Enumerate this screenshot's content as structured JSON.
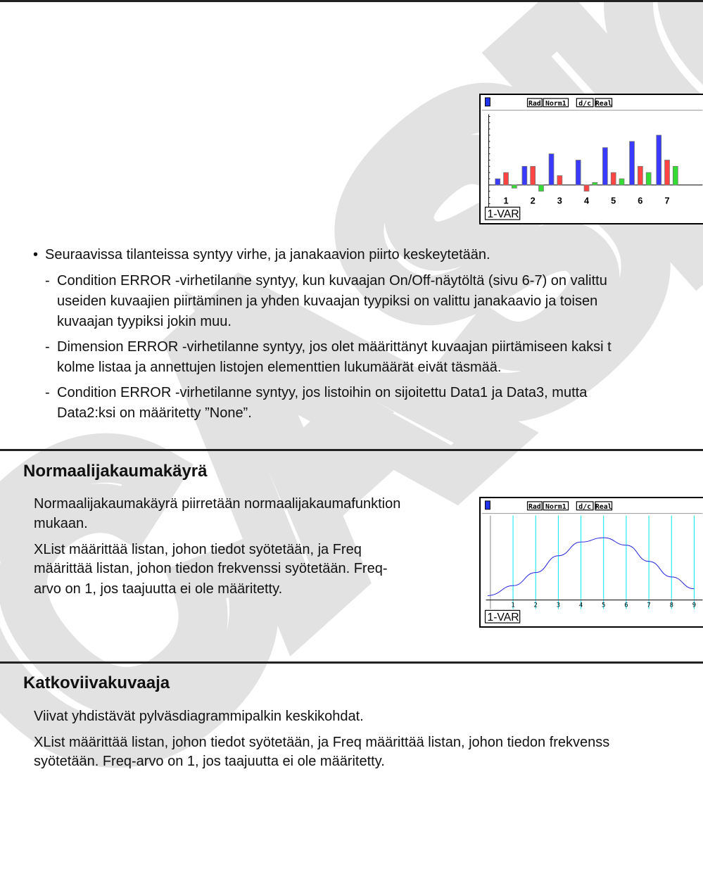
{
  "watermark": "CASIO",
  "bullet_section": {
    "bullet": "•",
    "intro": "Seuraavissa tilanteissa syntyy virhe, ja janakaavion piirto keskeytetään.",
    "items": [
      {
        "dash": "-",
        "lines": [
          "Condition ERROR -virhetilanne syntyy, kun kuvaajan On/Off-näytöltä (sivu 6-7) on valittu",
          "useiden kuvaajien piirtäminen ja yhden kuvaajan tyypiksi on valittu janakaavio ja toisen",
          "kuvaajan tyypiksi jokin muu."
        ]
      },
      {
        "dash": "-",
        "lines": [
          "Dimension ERROR -virhetilanne syntyy, jos olet määrittänyt kuvaajan piirtämiseen kaksi t",
          "kolme listaa ja annettujen listojen elementtien lukumäärät eivät täsmää."
        ]
      },
      {
        "dash": "-",
        "lines": [
          "Condition ERROR -virhetilanne syntyy, jos listoihin on sijoitettu Data1 ja Data3, mutta",
          "Data2:ksi on määritetty ”None”."
        ]
      }
    ]
  },
  "section_normal": {
    "title": "Normaalijakaumakäyrä",
    "lines": [
      "Normaalijakaumakäyrä piirretään normaalijakaumafunktion",
      "mukaan.",
      "XList määrittää listan, johon tiedot syötetään, ja Freq",
      "määrittää listan, johon tiedon frekvenssi syötetään. Freq-",
      "arvo on 1, jos taajuutta ei ole määritetty."
    ]
  },
  "section_broken": {
    "title": "Katkoviivakuvaaja",
    "lines": [
      "Viivat yhdistävät pylväsdiagrammipalkin keskikohdat.",
      "XList määrittää listan, johon tiedot syötetään, ja Freq määrittää listan, johon tiedon frekvenss",
      "syötetään. Freq-arvo on 1, jos taajuutta ei ole määritetty."
    ]
  },
  "screen": {
    "status": [
      "Rad",
      "Norm1",
      "d/c",
      "Real"
    ],
    "mode_label": "1-VAR",
    "battery_icon": "battery-icon",
    "colors": {
      "blue": "#3a3aff",
      "red": "#ff4444",
      "green": "#33dd33",
      "cyan": "#00e5ee",
      "curve": "#2222dd"
    }
  },
  "chart_data": [
    {
      "type": "bar",
      "categories": [
        "1",
        "2",
        "3",
        "4",
        "5",
        "6",
        "7"
      ],
      "series": [
        {
          "values": [
            1,
            3,
            5,
            4,
            6,
            7,
            8
          ]
        },
        {
          "values": [
            2,
            3,
            1.5,
            -1,
            2,
            3,
            4
          ]
        },
        {
          "values": [
            -0.5,
            -1,
            null,
            0.4,
            1,
            2,
            3
          ]
        }
      ],
      "grid": false
    },
    {
      "type": "line",
      "x": [
        0,
        1,
        2,
        3,
        4,
        5,
        6,
        7,
        8,
        9
      ],
      "y": [
        0.08,
        0.23,
        0.44,
        0.71,
        0.93,
        1.0,
        0.88,
        0.62,
        0.37,
        0.18
      ],
      "xticks": [
        "0",
        "1",
        "2",
        "3",
        "4",
        "5",
        "6",
        "7",
        "8",
        "9"
      ],
      "vertical_lines_at": [
        1,
        2,
        3,
        4,
        5,
        6,
        7,
        8,
        9
      ],
      "xlim": [
        0,
        9.2
      ]
    }
  ]
}
